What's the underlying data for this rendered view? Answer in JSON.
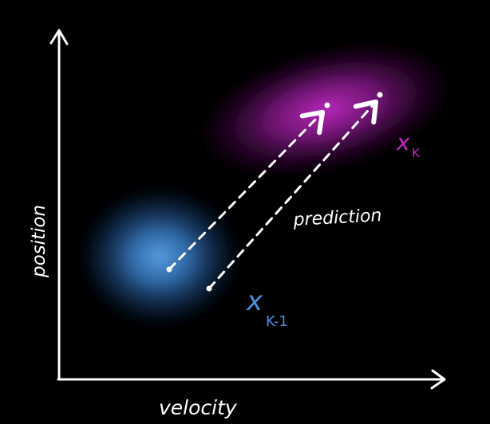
{
  "axes": {
    "x_label": "velocity",
    "y_label": "position"
  },
  "labels": {
    "prediction": "prediction",
    "current_state_base": "x",
    "current_state_sub": "K",
    "previous_state_base": "x",
    "previous_state_sub": "K-1"
  },
  "colors": {
    "background": "#000000",
    "axis": "#ffffff",
    "previous_blob": "#3d86d6",
    "current_blob": "#b21fb4",
    "previous_label": "#4b8fe0",
    "current_label": "#c22ac8",
    "arrow": "#ffffff"
  }
}
